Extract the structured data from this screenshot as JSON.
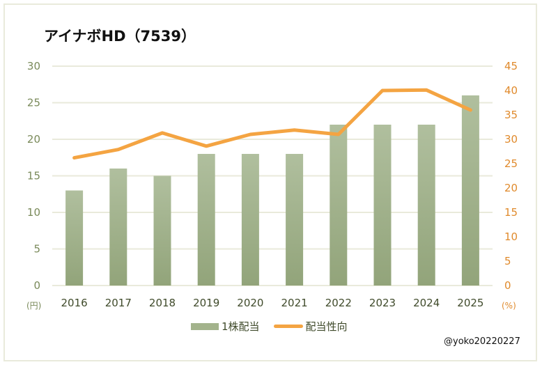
{
  "title": "アイナボHD（7539）",
  "credit": "@yoko20220227",
  "colors": {
    "bar_top": "#b0bf9e",
    "bar_bottom": "#92a47a",
    "line": "#f4a442",
    "left_axis_text": "#7a8a5a",
    "right_axis_text": "#e08a2c",
    "gridline": "#e9eadb",
    "frame": "#e9eadb"
  },
  "legend": {
    "bar_label": "1株配当",
    "line_label": "配当性向"
  },
  "axes": {
    "left_unit": "(円)",
    "right_unit": "(%)",
    "left_ticks": [
      "0",
      "5",
      "10",
      "15",
      "20",
      "25",
      "30"
    ],
    "right_ticks": [
      "0",
      "5",
      "10",
      "15",
      "20",
      "25",
      "30",
      "35",
      "40",
      "45"
    ]
  },
  "chart_data": {
    "type": "bar+line",
    "title": "アイナボHD（7539）",
    "categories": [
      "2016",
      "2017",
      "2018",
      "2019",
      "2020",
      "2021",
      "2022",
      "2023",
      "2024",
      "2025"
    ],
    "series": [
      {
        "name": "1株配当",
        "type": "bar",
        "axis": "left",
        "unit": "円",
        "values": [
          13,
          16,
          15,
          18,
          18,
          18,
          22,
          22,
          22,
          26
        ]
      },
      {
        "name": "配当性向",
        "type": "line",
        "axis": "right",
        "unit": "%",
        "values": [
          26.2,
          27.9,
          31.3,
          28.6,
          31.0,
          31.9,
          31.0,
          40.0,
          40.1,
          36.0
        ]
      }
    ],
    "xlabel": "",
    "ylabel_left": "(円)",
    "ylabel_right": "(%)",
    "ylim_left": [
      0,
      30
    ],
    "ylim_right": [
      0,
      45
    ],
    "yticks_left": [
      0,
      5,
      10,
      15,
      20,
      25,
      30
    ],
    "yticks_right": [
      0,
      5,
      10,
      15,
      20,
      25,
      30,
      35,
      40,
      45
    ],
    "grid": true,
    "legend_position": "bottom"
  }
}
